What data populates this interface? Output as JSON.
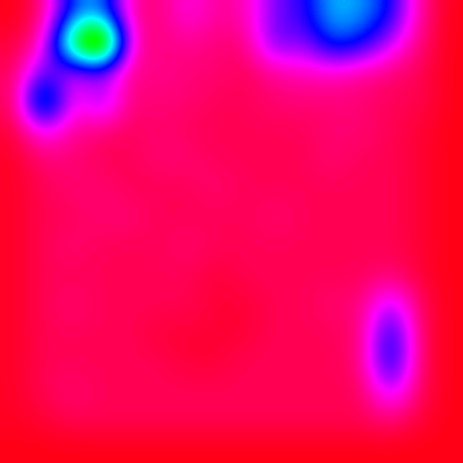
{
  "chart_data": {
    "type": "heatmap",
    "tick_labels": false,
    "cells": [
      [
        4,
        10,
        40,
        45,
        12,
        10,
        18,
        12,
        14,
        28,
        32,
        48,
        45,
        35,
        12,
        4
      ],
      [
        6,
        15,
        70,
        100,
        14,
        10,
        12,
        10,
        10,
        30,
        25,
        40,
        35,
        22,
        10,
        4
      ],
      [
        8,
        30,
        20,
        25,
        10,
        12,
        10,
        10,
        8,
        12,
        14,
        15,
        12,
        10,
        8,
        4
      ],
      [
        8,
        55,
        15,
        28,
        10,
        10,
        10,
        8,
        8,
        10,
        10,
        10,
        10,
        8,
        8,
        4
      ],
      [
        6,
        20,
        12,
        10,
        8,
        10,
        8,
        8,
        8,
        8,
        8,
        10,
        10,
        8,
        6,
        4
      ],
      [
        5,
        10,
        10,
        8,
        8,
        10,
        10,
        8,
        8,
        8,
        8,
        10,
        8,
        8,
        6,
        4
      ],
      [
        5,
        8,
        10,
        10,
        8,
        8,
        8,
        10,
        8,
        8,
        8,
        8,
        8,
        8,
        6,
        4
      ],
      [
        5,
        8,
        8,
        10,
        10,
        8,
        8,
        8,
        8,
        10,
        8,
        8,
        8,
        8,
        6,
        4
      ],
      [
        5,
        8,
        10,
        8,
        8,
        8,
        10,
        8,
        8,
        8,
        8,
        8,
        8,
        8,
        6,
        4
      ],
      [
        5,
        8,
        8,
        8,
        8,
        8,
        8,
        6,
        8,
        8,
        8,
        8,
        8,
        10,
        6,
        4
      ],
      [
        5,
        8,
        10,
        8,
        8,
        8,
        8,
        6,
        6,
        8,
        8,
        10,
        10,
        25,
        8,
        4
      ],
      [
        5,
        8,
        8,
        8,
        8,
        6,
        6,
        6,
        6,
        8,
        8,
        8,
        10,
        38,
        8,
        4
      ],
      [
        5,
        8,
        8,
        8,
        8,
        8,
        6,
        6,
        8,
        8,
        8,
        8,
        10,
        40,
        8,
        4
      ],
      [
        5,
        8,
        10,
        8,
        8,
        8,
        8,
        8,
        8,
        8,
        8,
        8,
        8,
        25,
        8,
        4
      ],
      [
        5,
        6,
        8,
        8,
        8,
        8,
        8,
        8,
        8,
        8,
        8,
        8,
        8,
        10,
        6,
        4
      ],
      [
        4,
        4,
        4,
        4,
        4,
        4,
        4,
        4,
        4,
        4,
        4,
        4,
        4,
        4,
        4,
        4
      ]
    ]
  }
}
